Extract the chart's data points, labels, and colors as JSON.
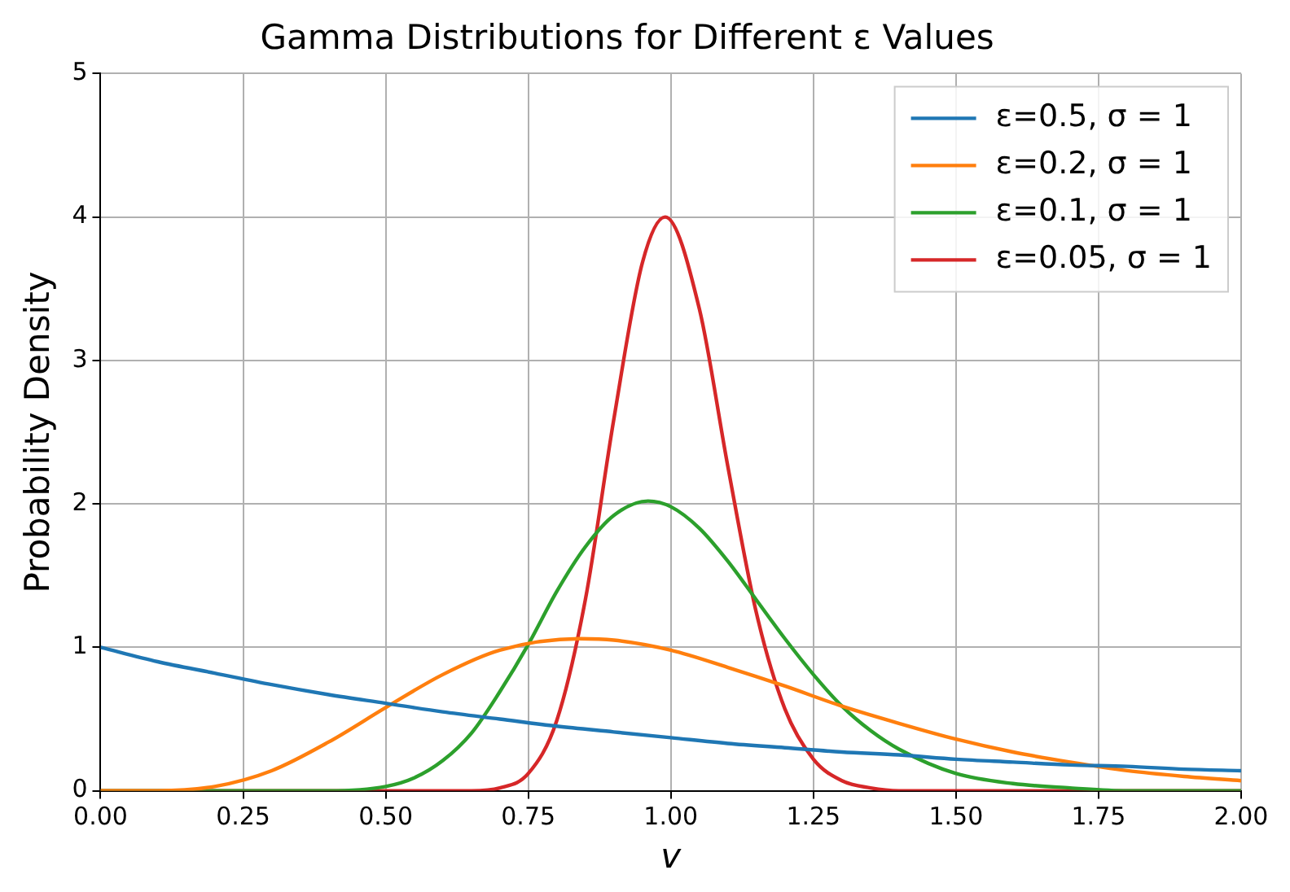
{
  "chart_data": {
    "type": "line",
    "title": "Gamma Distributions for Different ε Values",
    "xlabel": "v",
    "ylabel": "Probability Density",
    "xlim": [
      0,
      2
    ],
    "ylim": [
      0,
      5
    ],
    "xticks": [
      {
        "value": 0,
        "label": "0.00"
      },
      {
        "value": 0.25,
        "label": "0.25"
      },
      {
        "value": 0.5,
        "label": "0.50"
      },
      {
        "value": 0.75,
        "label": "0.75"
      },
      {
        "value": 1,
        "label": "1.00"
      },
      {
        "value": 1.25,
        "label": "1.25"
      },
      {
        "value": 1.5,
        "label": "1.50"
      },
      {
        "value": 1.75,
        "label": "1.75"
      },
      {
        "value": 2,
        "label": "2.00"
      }
    ],
    "yticks": [
      0,
      1,
      2,
      3,
      4,
      5
    ],
    "grid": true,
    "legend": "top right",
    "marker": "none",
    "line_style": "solid",
    "series": [
      {
        "name": "ε=0.5, σ = 1",
        "color": "#1f77b4",
        "x": [
          0,
          0.1,
          0.2,
          0.3,
          0.4,
          0.5,
          0.6,
          0.7,
          0.8,
          0.9,
          1,
          1.1,
          1.2,
          1.3,
          1.4,
          1.5,
          1.6,
          1.7,
          1.8,
          1.9,
          2
        ],
        "values": [
          1,
          0.9,
          0.82,
          0.74,
          0.67,
          0.61,
          0.55,
          0.5,
          0.45,
          0.41,
          0.37,
          0.33,
          0.3,
          0.27,
          0.25,
          0.22,
          0.2,
          0.18,
          0.17,
          0.15,
          0.14
        ]
      },
      {
        "name": "ε=0.2, σ = 1",
        "color": "#ff7f0e",
        "x": [
          0,
          0.1,
          0.2,
          0.3,
          0.4,
          0.5,
          0.6,
          0.7,
          0.84,
          0.9,
          1,
          1.1,
          1.2,
          1.3,
          1.4,
          1.5,
          1.6,
          1.7,
          1.8,
          1.9,
          2
        ],
        "values": [
          0,
          0,
          0.03,
          0.14,
          0.34,
          0.58,
          0.81,
          0.98,
          1.06,
          1.05,
          0.98,
          0.86,
          0.73,
          0.59,
          0.47,
          0.36,
          0.27,
          0.2,
          0.14,
          0.1,
          0.07
        ]
      },
      {
        "name": "ε=0.1, σ = 1",
        "color": "#2ca02c",
        "x": [
          0,
          0.3,
          0.4,
          0.5,
          0.55,
          0.6,
          0.65,
          0.7,
          0.75,
          0.8,
          0.85,
          0.9,
          0.96,
          1,
          1.05,
          1.1,
          1.15,
          1.2,
          1.25,
          1.3,
          1.35,
          1.4,
          1.5,
          1.6,
          1.7,
          1.8,
          2
        ],
        "values": [
          0,
          0,
          0,
          0.03,
          0.09,
          0.21,
          0.4,
          0.69,
          1.02,
          1.39,
          1.7,
          1.92,
          2.02,
          1.98,
          1.83,
          1.6,
          1.33,
          1.06,
          0.81,
          0.59,
          0.42,
          0.29,
          0.12,
          0.05,
          0.02,
          0,
          0
        ]
      },
      {
        "name": "ε=0.05, σ = 1",
        "color": "#d62728",
        "x": [
          0,
          0.6,
          0.65,
          0.7,
          0.75,
          0.8,
          0.85,
          0.9,
          0.95,
          0.99,
          1.05,
          1.1,
          1.15,
          1.2,
          1.25,
          1.3,
          1.35,
          1.4,
          1.5,
          2
        ],
        "values": [
          0,
          0,
          0,
          0.02,
          0.12,
          0.49,
          1.33,
          2.59,
          3.68,
          4,
          3.36,
          2.26,
          1.24,
          0.57,
          0.22,
          0.07,
          0.02,
          0,
          0,
          0
        ]
      }
    ]
  }
}
